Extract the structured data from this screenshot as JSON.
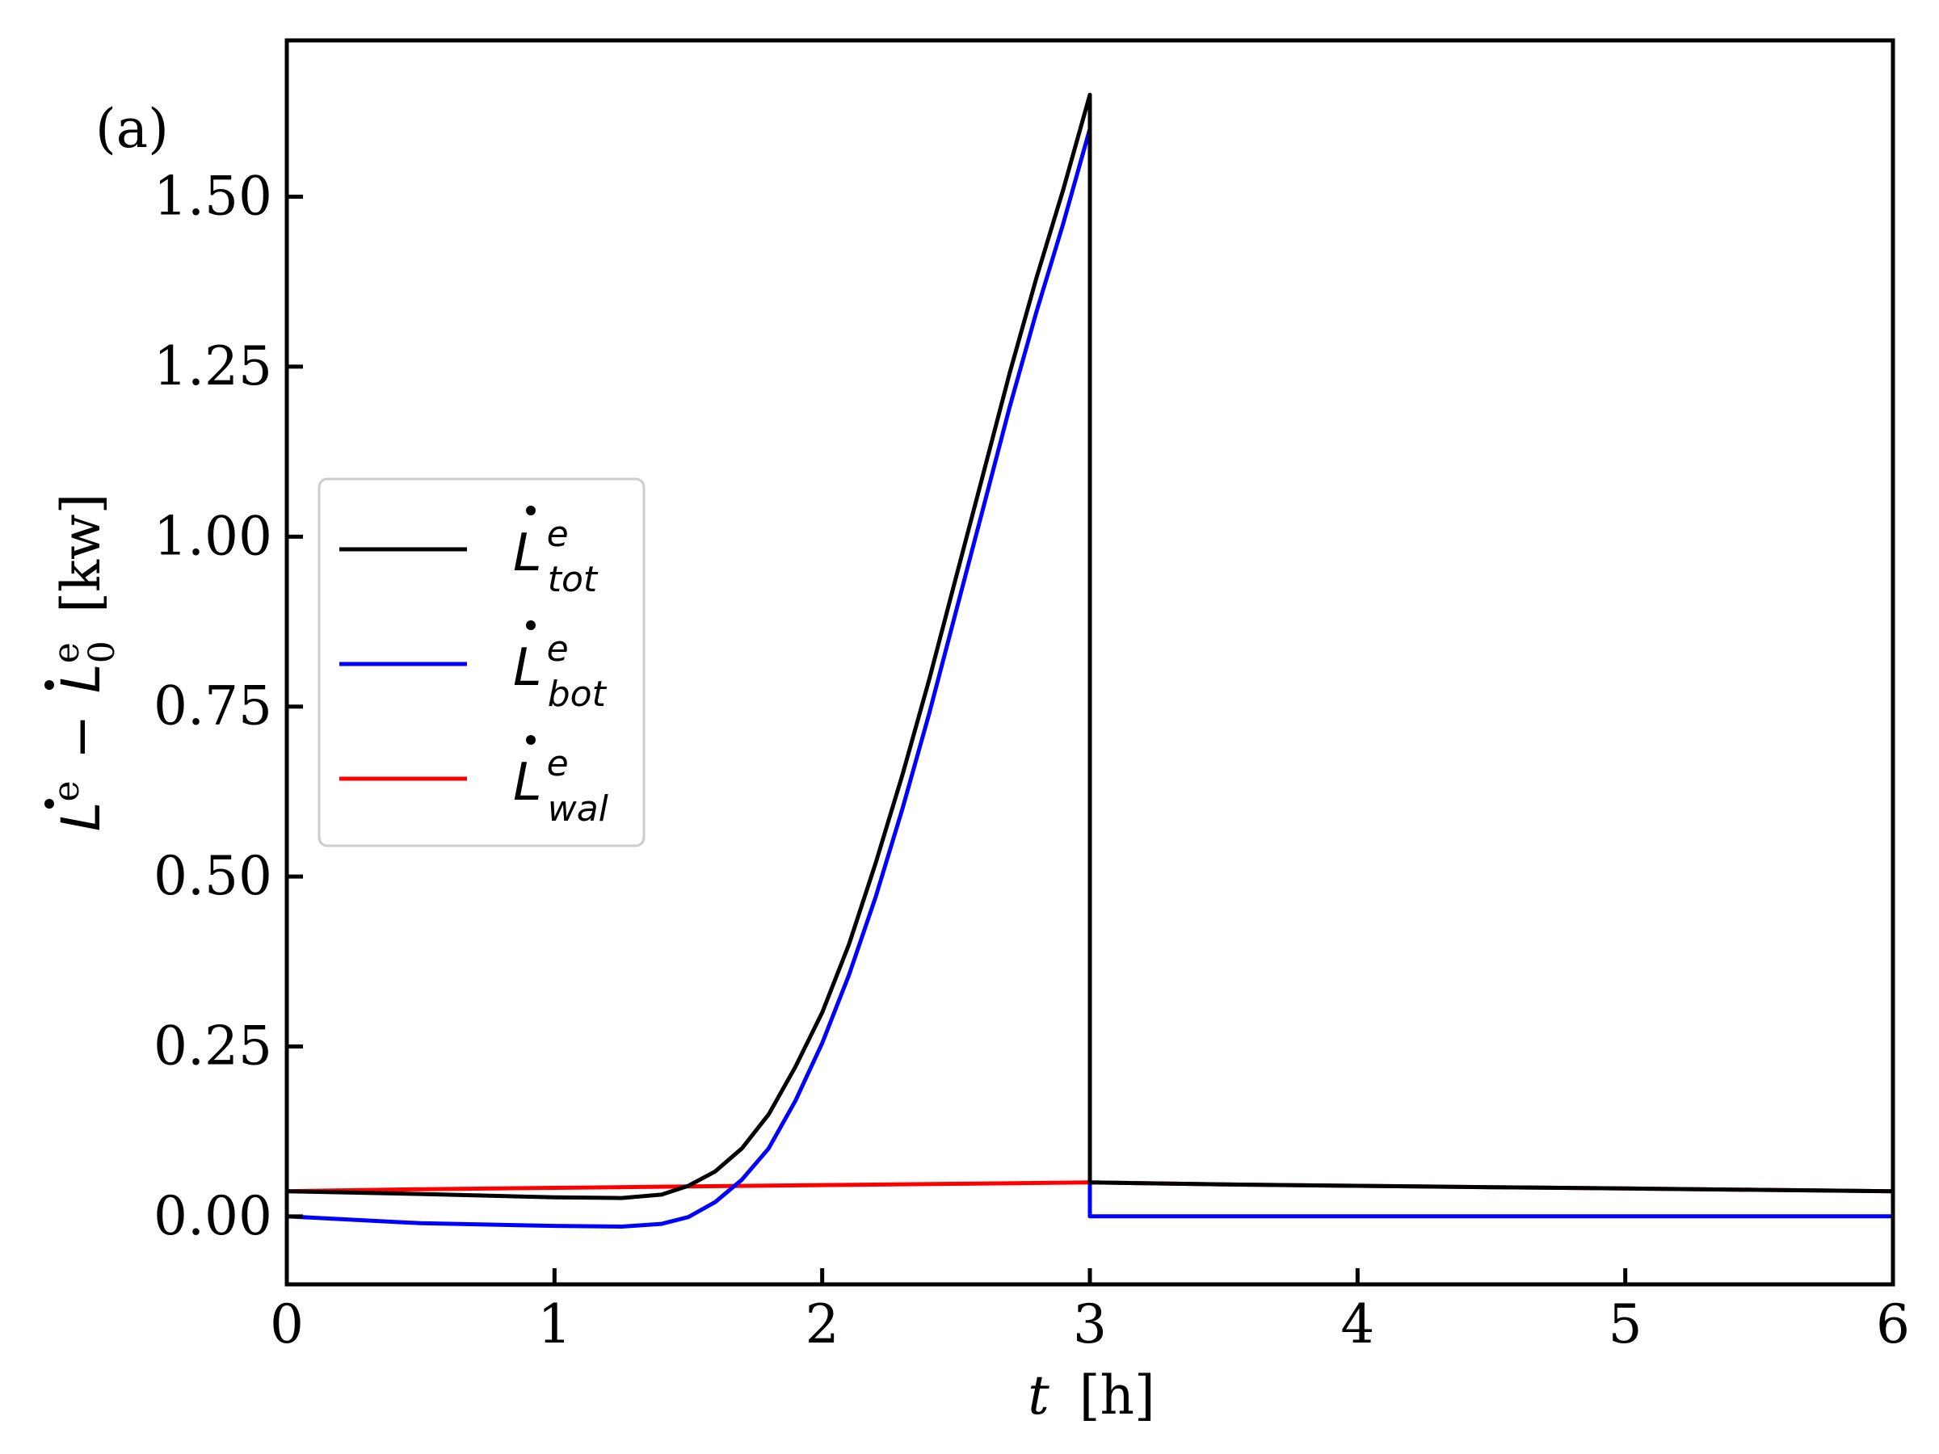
{
  "chart_data": {
    "type": "line",
    "panel_label": "(a)",
    "xlabel": {
      "var": "t",
      "unit": "[h]"
    },
    "ylabel": {
      "text": "L̇ᵉ − L̇₀ᵉ [kw]",
      "unit": "[kw]"
    },
    "xlim": [
      0,
      6
    ],
    "ylim": [
      -0.1,
      1.73
    ],
    "xticks": [
      0,
      1,
      2,
      3,
      4,
      5,
      6
    ],
    "yticks": [
      0.0,
      0.25,
      0.5,
      0.75,
      1.0,
      1.25,
      1.5
    ],
    "ytick_labels": [
      "0.00",
      "0.25",
      "0.50",
      "0.75",
      "1.00",
      "1.25",
      "1.50"
    ],
    "grid": false,
    "legend_position": "center-left",
    "series": [
      {
        "name": "tot",
        "color": "#000000",
        "x": [
          0,
          0.5,
          1.0,
          1.25,
          1.4,
          1.5,
          1.6,
          1.7,
          1.8,
          1.9,
          2.0,
          2.1,
          2.2,
          2.3,
          2.4,
          2.5,
          2.6,
          2.7,
          2.8,
          2.9,
          3.0,
          3.0,
          3.5,
          4.0,
          4.5,
          5.0,
          5.5,
          6.0
        ],
        "y": [
          0.037,
          0.033,
          0.028,
          0.027,
          0.032,
          0.045,
          0.066,
          0.1,
          0.15,
          0.22,
          0.3,
          0.4,
          0.52,
          0.65,
          0.79,
          0.94,
          1.09,
          1.24,
          1.38,
          1.51,
          1.65,
          0.05,
          0.047,
          0.045,
          0.043,
          0.041,
          0.039,
          0.037
        ]
      },
      {
        "name": "bot",
        "color": "#0000ff",
        "x": [
          0,
          0.5,
          1.0,
          1.25,
          1.4,
          1.5,
          1.6,
          1.7,
          1.8,
          1.9,
          2.0,
          2.1,
          2.2,
          2.3,
          2.4,
          2.5,
          2.6,
          2.7,
          2.8,
          2.9,
          3.0,
          3.0,
          3.5,
          4.0,
          4.5,
          5.0,
          5.5,
          6.0
        ],
        "y": [
          0.0,
          -0.01,
          -0.014,
          -0.015,
          -0.011,
          -0.001,
          0.021,
          0.054,
          0.1,
          0.17,
          0.255,
          0.355,
          0.47,
          0.6,
          0.74,
          0.89,
          1.04,
          1.19,
          1.33,
          1.46,
          1.6,
          0.0,
          0.0,
          0.0,
          0.0,
          0.0,
          0.0,
          0.0
        ]
      },
      {
        "name": "wal",
        "color": "#ff0000",
        "x": [
          0,
          0.5,
          1.0,
          1.5,
          2.0,
          2.5,
          3.0,
          3.5,
          4.0,
          4.5,
          5.0,
          5.5,
          6.0
        ],
        "y": [
          0.037,
          0.04,
          0.042,
          0.044,
          0.046,
          0.048,
          0.05,
          0.047,
          0.045,
          0.043,
          0.041,
          0.039,
          0.037
        ]
      }
    ]
  }
}
